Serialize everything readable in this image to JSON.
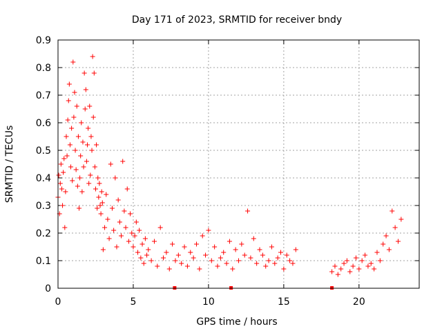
{
  "chart_data": {
    "type": "scatter",
    "title": "Day 171 of 2023, SRMTID for receiver bndy",
    "xlabel": "GPS time / hours",
    "ylabel": "SRMTID / TECUs",
    "xlim": [
      0,
      24
    ],
    "ylim": [
      0,
      0.9
    ],
    "xticks": [
      0,
      5,
      10,
      15,
      20
    ],
    "yticks": [
      0,
      0.1,
      0.2,
      0.3,
      0.4,
      0.5,
      0.6,
      0.7,
      0.8,
      0.9
    ],
    "xtick_labels": [
      "0",
      "5",
      "10",
      "15",
      "20"
    ],
    "ytick_labels": [
      "0",
      "0.1",
      "0.2",
      "0.3",
      "0.4",
      "0.5",
      "0.6",
      "0.7",
      "0.8",
      "0.9"
    ],
    "grid": true,
    "marker": "+",
    "color": "#ff0000",
    "gap_markers_x": [
      7.75,
      11.5,
      18.2
    ],
    "series": [
      {
        "name": "SRMTID",
        "x": [
          0.0,
          0.05,
          0.1,
          0.15,
          0.2,
          0.25,
          0.3,
          0.35,
          0.4,
          0.45,
          0.5,
          0.55,
          0.6,
          0.65,
          0.7,
          0.75,
          0.8,
          0.85,
          0.9,
          0.95,
          1.0,
          1.05,
          1.1,
          1.15,
          1.2,
          1.25,
          1.3,
          1.35,
          1.4,
          1.45,
          1.5,
          1.55,
          1.6,
          1.65,
          1.7,
          1.75,
          1.8,
          1.85,
          1.9,
          1.95,
          2.0,
          2.05,
          2.1,
          2.15,
          2.2,
          2.25,
          2.3,
          2.35,
          2.4,
          2.45,
          2.5,
          2.55,
          2.6,
          2.65,
          2.7,
          2.75,
          2.8,
          2.85,
          2.9,
          2.95,
          3.0,
          3.1,
          3.2,
          3.3,
          3.4,
          3.5,
          3.6,
          3.7,
          3.8,
          3.9,
          4.0,
          4.1,
          4.2,
          4.3,
          4.4,
          4.5,
          4.6,
          4.7,
          4.8,
          4.9,
          5.0,
          5.1,
          5.2,
          5.3,
          5.4,
          5.5,
          5.6,
          5.7,
          5.8,
          5.9,
          6.0,
          6.2,
          6.4,
          6.6,
          6.8,
          7.0,
          7.2,
          7.4,
          7.6,
          7.8,
          8.0,
          8.2,
          8.4,
          8.6,
          8.8,
          9.0,
          9.2,
          9.4,
          9.6,
          9.8,
          10.0,
          10.2,
          10.4,
          10.6,
          10.8,
          11.0,
          11.2,
          11.4,
          11.6,
          11.8,
          12.0,
          12.2,
          12.4,
          12.6,
          12.8,
          13.0,
          13.2,
          13.4,
          13.6,
          13.8,
          14.0,
          14.2,
          14.4,
          14.6,
          14.8,
          15.0,
          15.2,
          15.4,
          15.6,
          15.8,
          18.2,
          18.4,
          18.6,
          18.8,
          19.0,
          19.2,
          19.4,
          19.6,
          19.8,
          20.0,
          20.2,
          20.4,
          20.6,
          20.8,
          21.0,
          21.2,
          21.4,
          21.6,
          21.8,
          22.0,
          22.2,
          22.4,
          22.6,
          22.8
        ],
        "y": [
          0.33,
          0.41,
          0.27,
          0.38,
          0.45,
          0.36,
          0.3,
          0.42,
          0.47,
          0.22,
          0.35,
          0.55,
          0.48,
          0.61,
          0.68,
          0.74,
          0.52,
          0.44,
          0.58,
          0.39,
          0.82,
          0.62,
          0.71,
          0.5,
          0.43,
          0.66,
          0.37,
          0.55,
          0.29,
          0.4,
          0.48,
          0.6,
          0.35,
          0.53,
          0.44,
          0.78,
          0.65,
          0.72,
          0.46,
          0.52,
          0.58,
          0.38,
          0.66,
          0.41,
          0.55,
          0.5,
          0.84,
          0.62,
          0.78,
          0.44,
          0.36,
          0.52,
          0.29,
          0.4,
          0.33,
          0.38,
          0.3,
          0.27,
          0.35,
          0.31,
          0.14,
          0.22,
          0.34,
          0.25,
          0.18,
          0.45,
          0.29,
          0.21,
          0.4,
          0.15,
          0.32,
          0.24,
          0.19,
          0.46,
          0.28,
          0.22,
          0.36,
          0.17,
          0.27,
          0.2,
          0.15,
          0.19,
          0.24,
          0.13,
          0.21,
          0.11,
          0.16,
          0.09,
          0.18,
          0.12,
          0.14,
          0.1,
          0.17,
          0.08,
          0.22,
          0.11,
          0.13,
          0.07,
          0.16,
          0.1,
          0.12,
          0.09,
          0.15,
          0.08,
          0.13,
          0.11,
          0.16,
          0.07,
          0.19,
          0.12,
          0.21,
          0.1,
          0.15,
          0.08,
          0.11,
          0.13,
          0.09,
          0.17,
          0.07,
          0.14,
          0.1,
          0.16,
          0.12,
          0.28,
          0.11,
          0.18,
          0.09,
          0.14,
          0.12,
          0.08,
          0.1,
          0.15,
          0.09,
          0.11,
          0.13,
          0.07,
          0.12,
          0.1,
          0.09,
          0.14,
          0.06,
          0.08,
          0.05,
          0.07,
          0.09,
          0.1,
          0.06,
          0.08,
          0.11,
          0.07,
          0.1,
          0.12,
          0.08,
          0.09,
          0.07,
          0.13,
          0.1,
          0.16,
          0.19,
          0.14,
          0.28,
          0.22,
          0.17,
          0.25
        ]
      }
    ]
  }
}
